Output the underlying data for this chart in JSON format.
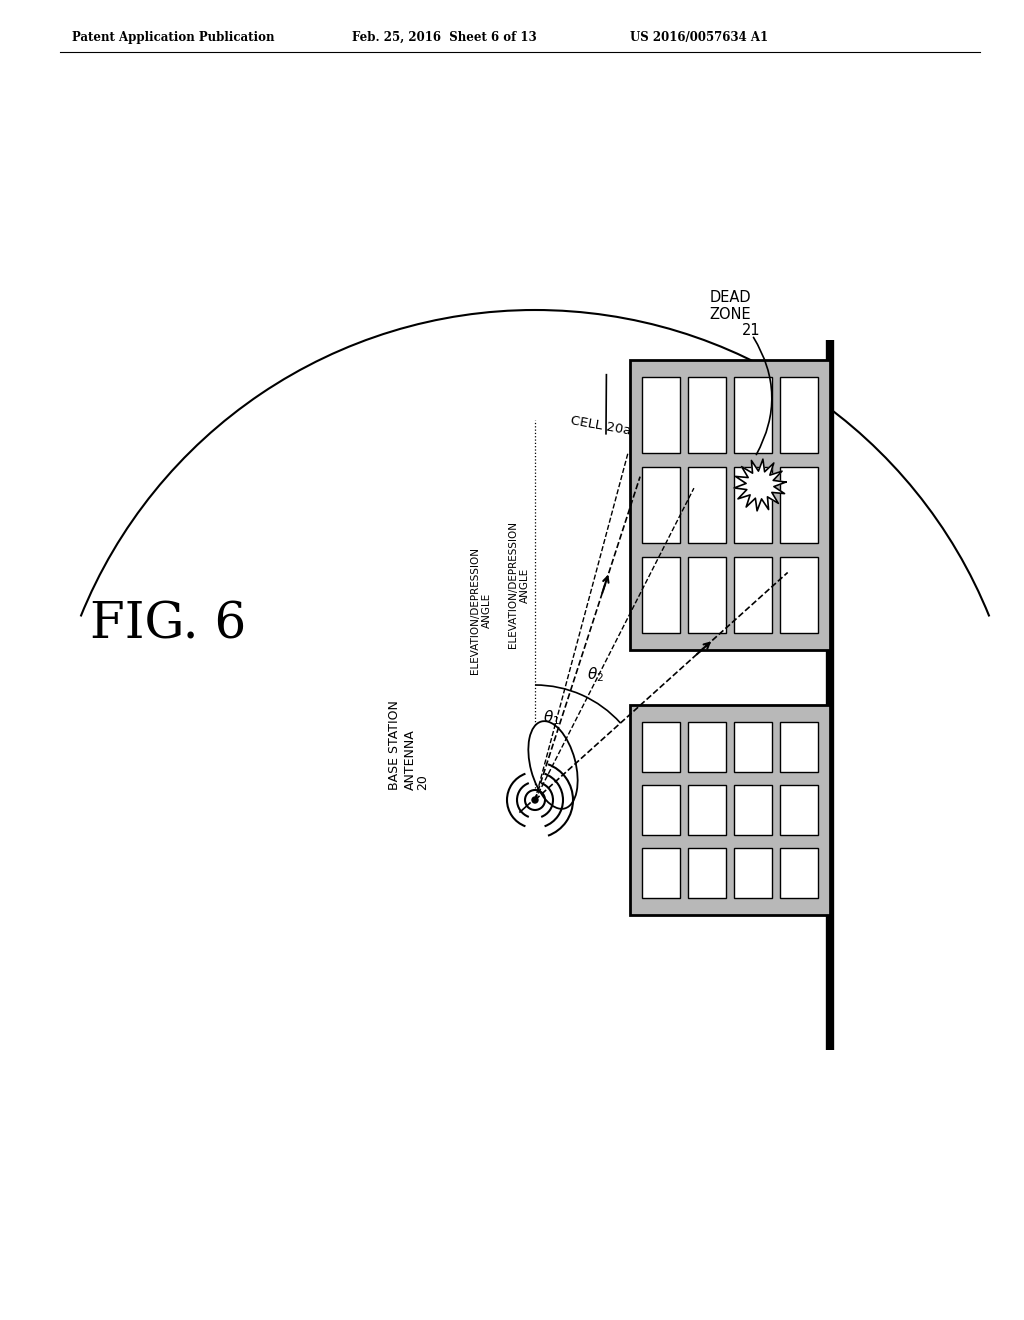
{
  "header_left": "Patent Application Publication",
  "header_mid": "Feb. 25, 2016  Sheet 6 of 13",
  "header_right": "US 2016/0057634 A1",
  "fig_label": "FIG. 6",
  "background": "#ffffff",
  "line_color": "#000000",
  "building_fill": "#b8b8b8",
  "building_border": "#000000",
  "window_fill": "#ffffff",
  "window_border": "#000000"
}
